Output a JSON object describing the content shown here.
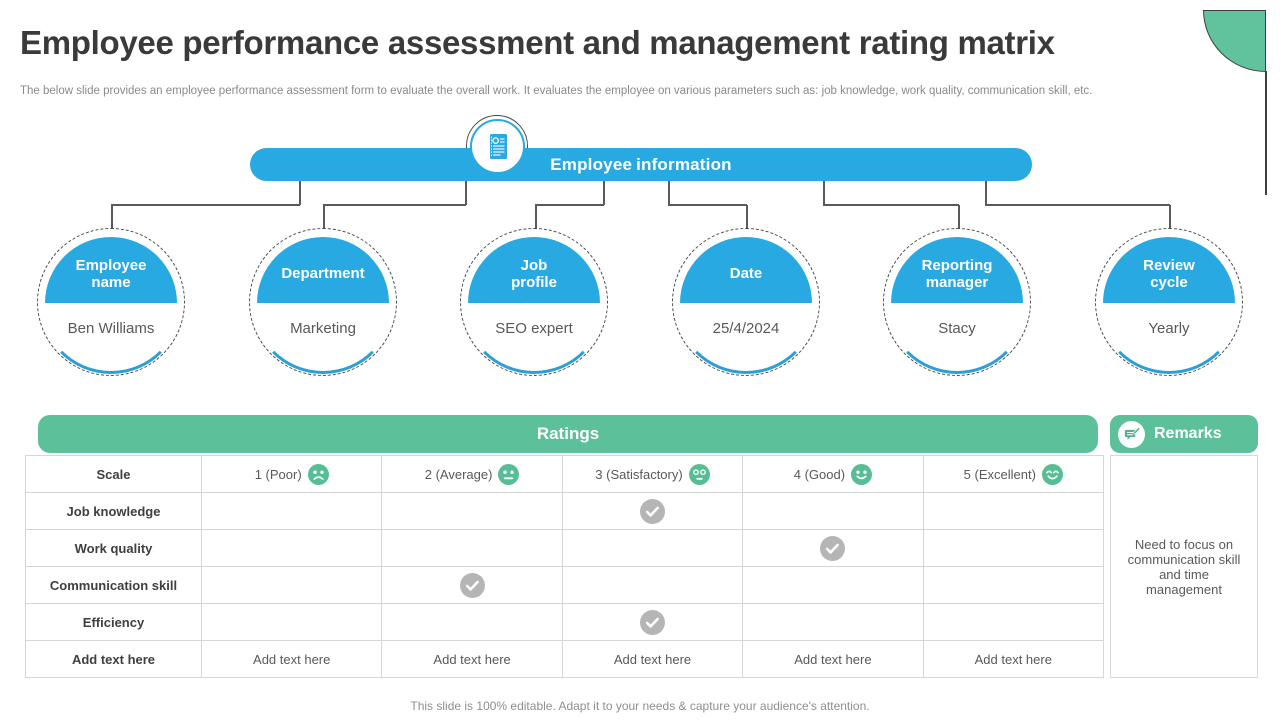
{
  "slide": {
    "title": "Employee performance assessment and management rating matrix",
    "subtitle": "The below slide provides an employee performance assessment form to evaluate the overall work. It evaluates the employee on various parameters such as: job knowledge, work quality, communication skill, etc.",
    "footer": "This slide is 100% editable. Adapt it to your needs & capture your audience's attention."
  },
  "colors": {
    "blue": "#29a9e1",
    "blue_arc": "#2b9fd6",
    "green": "#5cc19b",
    "emoji_green": "#57bd95",
    "check_gray": "#b5b5b5"
  },
  "employee_info": {
    "header": "Employee information",
    "header_icon": "document-icon",
    "items": [
      {
        "label": "Employee\nname",
        "value": "Ben Williams"
      },
      {
        "label": "Department",
        "value": "Marketing"
      },
      {
        "label": "Job\nprofile",
        "value": "SEO expert"
      },
      {
        "label": "Date",
        "value": "25/4/2024"
      },
      {
        "label": "Reporting\nmanager",
        "value": "Stacy"
      },
      {
        "label": "Review\ncycle",
        "value": "Yearly"
      }
    ]
  },
  "ratings": {
    "header": "Ratings",
    "scale_row_label": "Scale",
    "scale": [
      {
        "label": "1 (Poor)",
        "icon": "sad-face-icon"
      },
      {
        "label": "2 (Average)",
        "icon": "neutral-face-icon"
      },
      {
        "label": "3 (Satisfactory)",
        "icon": "surprised-face-icon"
      },
      {
        "label": "4 (Good)",
        "icon": "smile-face-icon"
      },
      {
        "label": "5 (Excellent)",
        "icon": "happy-face-icon"
      }
    ],
    "rows": [
      {
        "label": "Job knowledge",
        "rating": 3
      },
      {
        "label": "Work quality",
        "rating": 4
      },
      {
        "label": "Communication skill",
        "rating": 2
      },
      {
        "label": "Efficiency",
        "rating": 3
      }
    ],
    "add_text_row": {
      "label": "Add text here",
      "cells": [
        "Add text here",
        "Add text here",
        "Add text here",
        "Add text here",
        "Add text here"
      ]
    }
  },
  "remarks": {
    "header": "Remarks",
    "header_icon": "chat-edit-icon",
    "text": "Need to focus on communication skill and time management"
  }
}
